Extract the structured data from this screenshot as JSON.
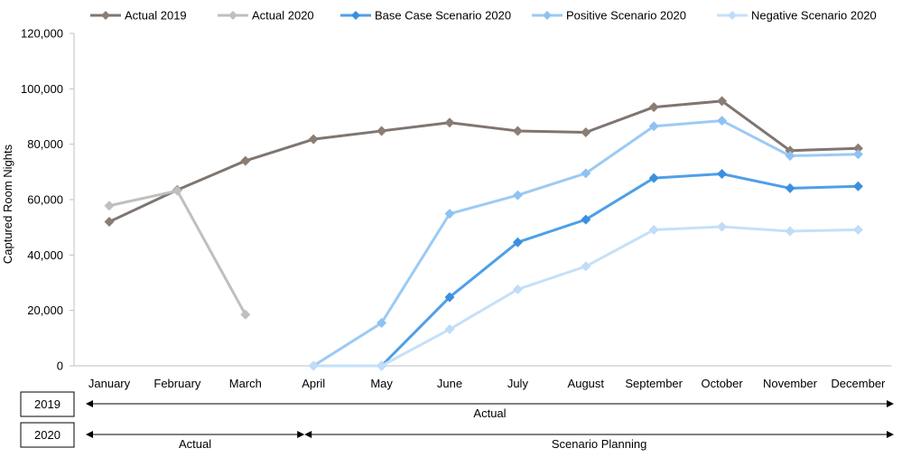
{
  "chart_data": {
    "type": "line",
    "title": "",
    "xlabel": "",
    "ylabel": "Captured Room Nights",
    "ylim": [
      0,
      120000
    ],
    "yticks": [
      0,
      20000,
      40000,
      60000,
      80000,
      100000,
      120000
    ],
    "ytick_labels": [
      "0",
      "20,000",
      "40,000",
      "60,000",
      "80,000",
      "100,000",
      "120,000"
    ],
    "grid": false,
    "legend_position": "top",
    "categories": [
      "January",
      "February",
      "March",
      "April",
      "May",
      "June",
      "July",
      "August",
      "September",
      "October",
      "November",
      "December"
    ],
    "series": [
      {
        "name": "Actual 2019",
        "color": "#7f7570",
        "marker_color": "#8b7d72",
        "values": [
          52000,
          63500,
          74000,
          81800,
          84800,
          87800,
          84800,
          84300,
          93400,
          95600,
          77700,
          78500
        ]
      },
      {
        "name": "Actual 2020",
        "color": "#bfbfbf",
        "marker_color": "#bfbfbf",
        "values": [
          57800,
          63200,
          18500,
          null,
          null,
          null,
          null,
          null,
          null,
          null,
          null,
          null
        ]
      },
      {
        "name": "Base Case Scenario 2020",
        "color": "#4e9fe8",
        "marker_color": "#3c8fde",
        "values": [
          null,
          null,
          null,
          null,
          0,
          24800,
          44600,
          52800,
          67800,
          69300,
          64100,
          64800
        ]
      },
      {
        "name": "Positive Scenario 2020",
        "color": "#9ccaf4",
        "marker_color": "#8fc2f2",
        "values": [
          null,
          null,
          null,
          0,
          15500,
          54900,
          61600,
          69500,
          86500,
          88500,
          75800,
          76400
        ]
      },
      {
        "name": "Negative Scenario 2020",
        "color": "#c5e0f8",
        "marker_color": "#c0dcf7",
        "values": [
          null,
          null,
          null,
          0,
          0,
          13200,
          27600,
          35900,
          49100,
          50200,
          48600,
          49100
        ]
      }
    ],
    "timeline": {
      "rows": [
        {
          "label": "2019",
          "segments": [
            {
              "label": "Actual",
              "from": "January",
              "to": "December"
            }
          ]
        },
        {
          "label": "2020",
          "segments": [
            {
              "label": "Actual",
              "from": "January",
              "to": "April"
            },
            {
              "label": "Scenario Planning",
              "from": "April",
              "to": "December"
            }
          ]
        }
      ]
    }
  }
}
